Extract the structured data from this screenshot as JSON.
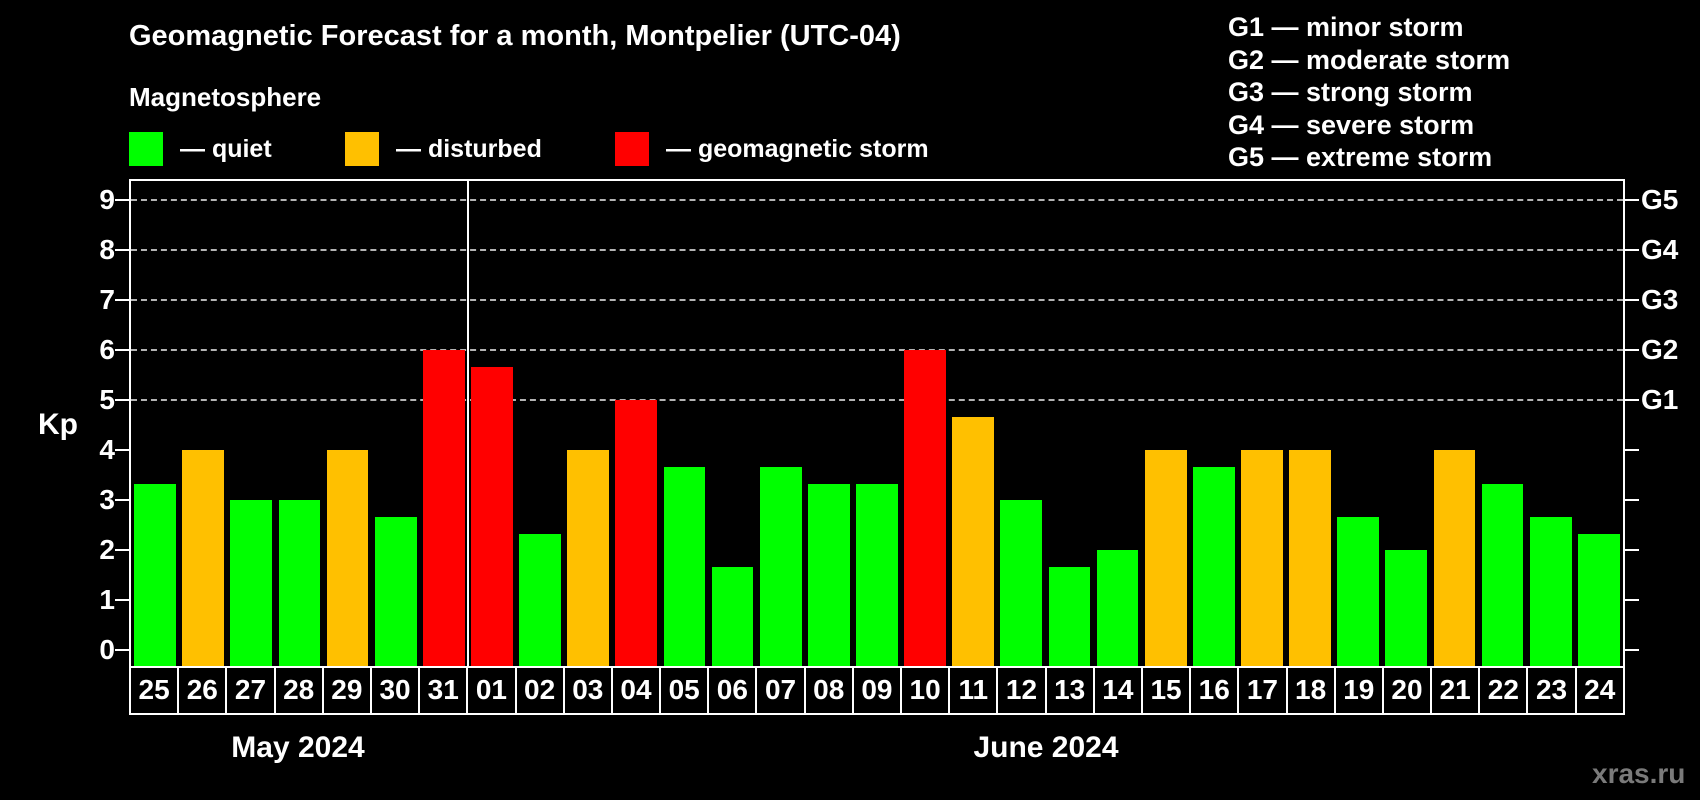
{
  "title": "Geomagnetic Forecast for a month, Montpelier (UTC-04)",
  "subtitle": "Magnetosphere",
  "legend": {
    "quiet": {
      "label": "— quiet",
      "color": "#00ff00"
    },
    "disturbed": {
      "label": "— disturbed",
      "color": "#ffc000"
    },
    "storm": {
      "label": "— geomagnetic storm",
      "color": "#ff0000"
    }
  },
  "g_legend": {
    "lines": [
      "G1 — minor storm",
      "G2 — moderate storm",
      "G3 — strong storm",
      "G4 — severe storm",
      "G5 — extreme storm"
    ]
  },
  "watermark": "xras.ru",
  "chart_data": {
    "type": "bar",
    "title": "Geomagnetic Forecast for a month, Montpelier (UTC-04)",
    "ylabel": "Kp",
    "ylim": [
      0,
      9
    ],
    "y_ticks": [
      0,
      1,
      2,
      3,
      4,
      5,
      6,
      7,
      8,
      9
    ],
    "gridlines_kp": [
      5,
      6,
      7,
      8,
      9
    ],
    "grid_style": "horizontal dashed gray at storm levels only",
    "legend_position": "top-left",
    "right_axis": [
      {
        "label": "G1",
        "kp": 5
      },
      {
        "label": "G2",
        "kp": 6
      },
      {
        "label": "G3",
        "kp": 7
      },
      {
        "label": "G4",
        "kp": 8
      },
      {
        "label": "G5",
        "kp": 9
      }
    ],
    "months": [
      {
        "label": "May 2024",
        "days": 7
      },
      {
        "label": "June 2024",
        "days": 24
      }
    ],
    "bars": [
      {
        "day": "25",
        "month": "May 2024",
        "kp": 3.33,
        "status": "quiet"
      },
      {
        "day": "26",
        "month": "May 2024",
        "kp": 4.0,
        "status": "disturbed"
      },
      {
        "day": "27",
        "month": "May 2024",
        "kp": 3.0,
        "status": "quiet"
      },
      {
        "day": "28",
        "month": "May 2024",
        "kp": 3.0,
        "status": "quiet"
      },
      {
        "day": "29",
        "month": "May 2024",
        "kp": 4.0,
        "status": "disturbed"
      },
      {
        "day": "30",
        "month": "May 2024",
        "kp": 2.67,
        "status": "quiet"
      },
      {
        "day": "31",
        "month": "May 2024",
        "kp": 6.0,
        "status": "storm"
      },
      {
        "day": "01",
        "month": "June 2024",
        "kp": 5.67,
        "status": "storm"
      },
      {
        "day": "02",
        "month": "June 2024",
        "kp": 2.33,
        "status": "quiet"
      },
      {
        "day": "03",
        "month": "June 2024",
        "kp": 4.0,
        "status": "disturbed"
      },
      {
        "day": "04",
        "month": "June 2024",
        "kp": 5.0,
        "status": "storm"
      },
      {
        "day": "05",
        "month": "June 2024",
        "kp": 3.67,
        "status": "quiet"
      },
      {
        "day": "06",
        "month": "June 2024",
        "kp": 1.67,
        "status": "quiet"
      },
      {
        "day": "07",
        "month": "June 2024",
        "kp": 3.67,
        "status": "quiet"
      },
      {
        "day": "08",
        "month": "June 2024",
        "kp": 3.33,
        "status": "quiet"
      },
      {
        "day": "09",
        "month": "June 2024",
        "kp": 3.33,
        "status": "quiet"
      },
      {
        "day": "10",
        "month": "June 2024",
        "kp": 6.0,
        "status": "storm"
      },
      {
        "day": "11",
        "month": "June 2024",
        "kp": 4.67,
        "status": "disturbed"
      },
      {
        "day": "12",
        "month": "June 2024",
        "kp": 3.0,
        "status": "quiet"
      },
      {
        "day": "13",
        "month": "June 2024",
        "kp": 1.67,
        "status": "quiet"
      },
      {
        "day": "14",
        "month": "June 2024",
        "kp": 2.0,
        "status": "quiet"
      },
      {
        "day": "15",
        "month": "June 2024",
        "kp": 4.0,
        "status": "disturbed"
      },
      {
        "day": "16",
        "month": "June 2024",
        "kp": 3.67,
        "status": "quiet"
      },
      {
        "day": "17",
        "month": "June 2024",
        "kp": 4.0,
        "status": "disturbed"
      },
      {
        "day": "18",
        "month": "June 2024",
        "kp": 4.0,
        "status": "disturbed"
      },
      {
        "day": "19",
        "month": "June 2024",
        "kp": 2.67,
        "status": "quiet"
      },
      {
        "day": "20",
        "month": "June 2024",
        "kp": 2.0,
        "status": "quiet"
      },
      {
        "day": "21",
        "month": "June 2024",
        "kp": 4.0,
        "status": "disturbed"
      },
      {
        "day": "22",
        "month": "June 2024",
        "kp": 3.33,
        "status": "quiet"
      },
      {
        "day": "23",
        "month": "June 2024",
        "kp": 2.67,
        "status": "quiet"
      },
      {
        "day": "24",
        "month": "June 2024",
        "kp": 2.33,
        "status": "quiet"
      }
    ]
  }
}
